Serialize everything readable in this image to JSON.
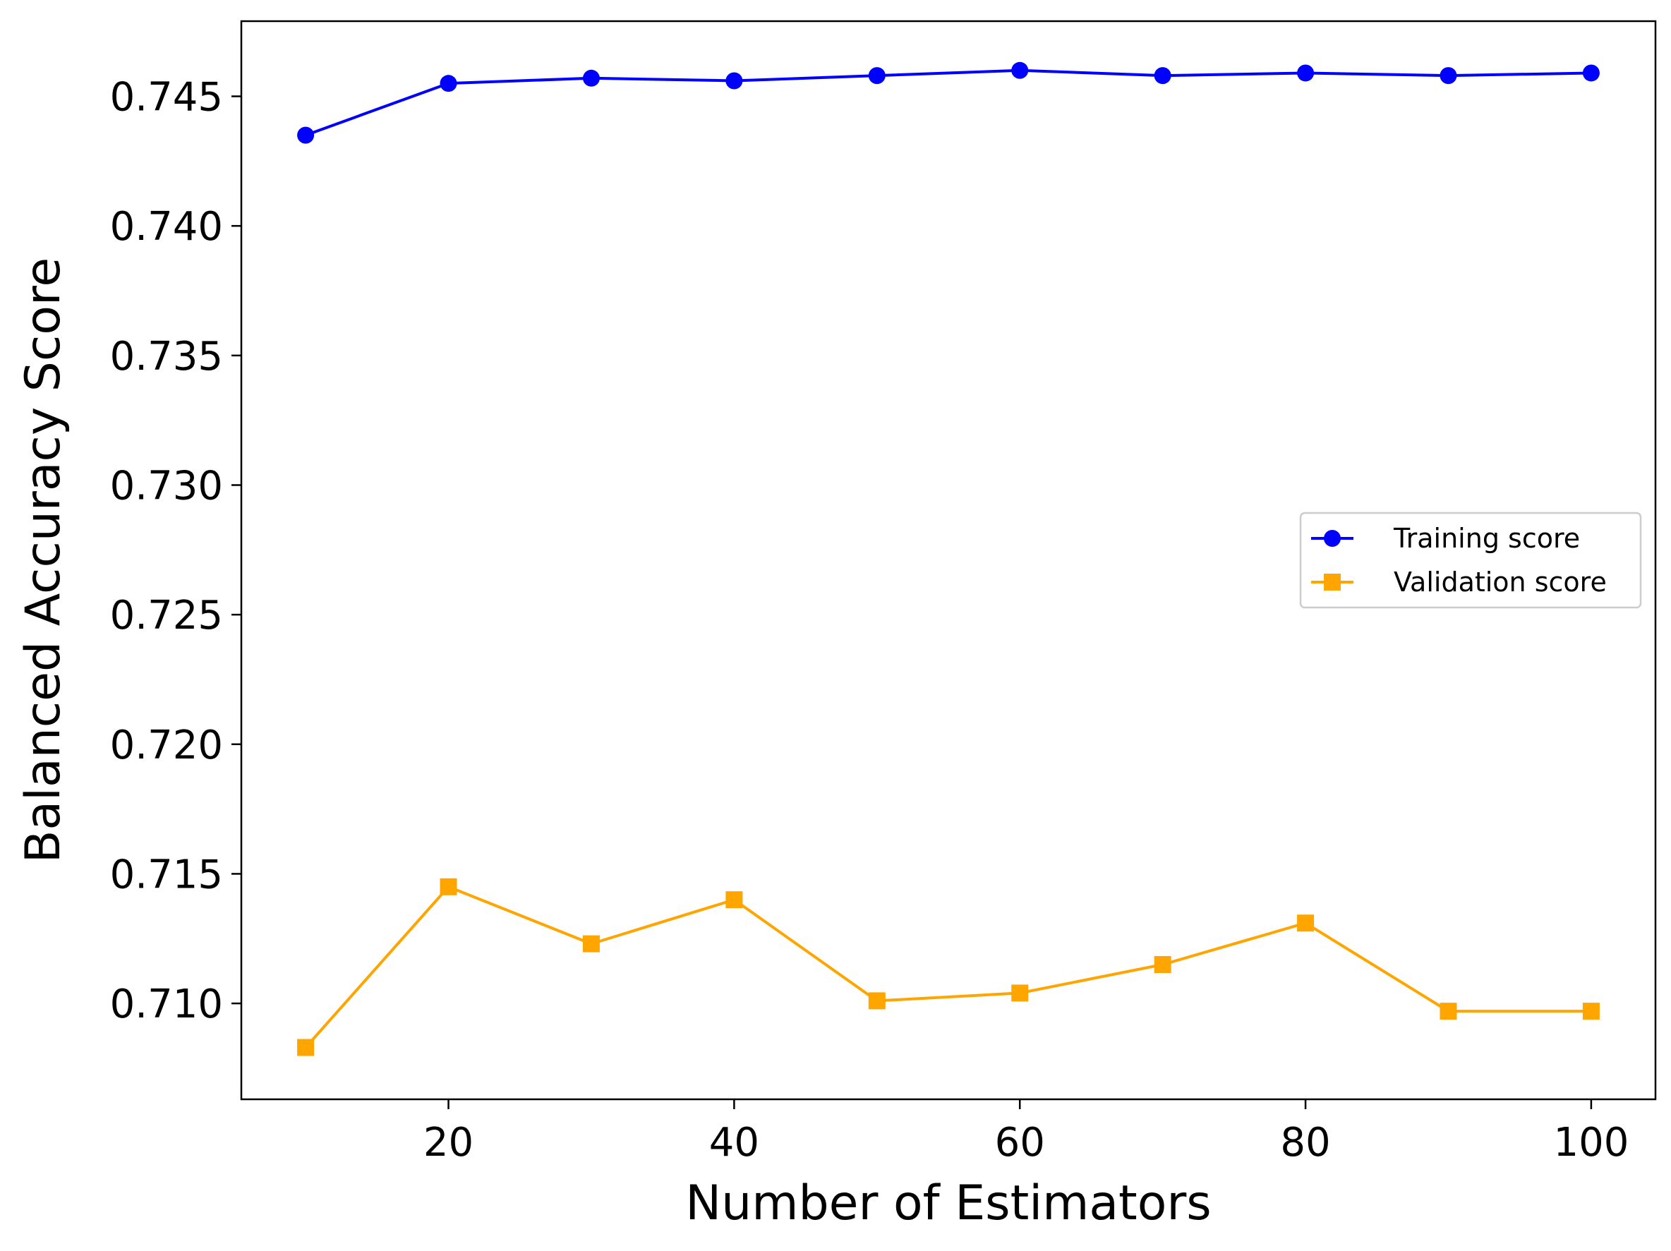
{
  "chart_data": {
    "type": "line",
    "title": "",
    "xlabel": "Number of Estimators",
    "ylabel": "Balanced Accuracy Score",
    "x": [
      10,
      20,
      30,
      40,
      50,
      60,
      70,
      80,
      90,
      100
    ],
    "xlim": [
      5.5,
      104.5
    ],
    "ylim": [
      0.7063,
      0.7479
    ],
    "xticks": [
      20,
      40,
      60,
      80,
      100
    ],
    "xtick_labels": [
      "20",
      "40",
      "60",
      "80",
      "100"
    ],
    "yticks": [
      0.71,
      0.715,
      0.72,
      0.725,
      0.73,
      0.735,
      0.74,
      0.745
    ],
    "ytick_labels": [
      "0.710",
      "0.715",
      "0.720",
      "0.725",
      "0.730",
      "0.735",
      "0.740",
      "0.745"
    ],
    "grid": false,
    "legend_position": "center-right",
    "series": [
      {
        "name": "Training score",
        "color": "#0000ff",
        "marker": "circle",
        "values": [
          0.7435,
          0.7455,
          0.7457,
          0.7456,
          0.7458,
          0.746,
          0.7458,
          0.7459,
          0.7458,
          0.7459
        ]
      },
      {
        "name": "Validation score",
        "color": "#ffa500",
        "marker": "square",
        "values": [
          0.7083,
          0.7145,
          0.7123,
          0.714,
          0.7101,
          0.7104,
          0.7115,
          0.7131,
          0.7097,
          0.7097
        ]
      }
    ]
  }
}
